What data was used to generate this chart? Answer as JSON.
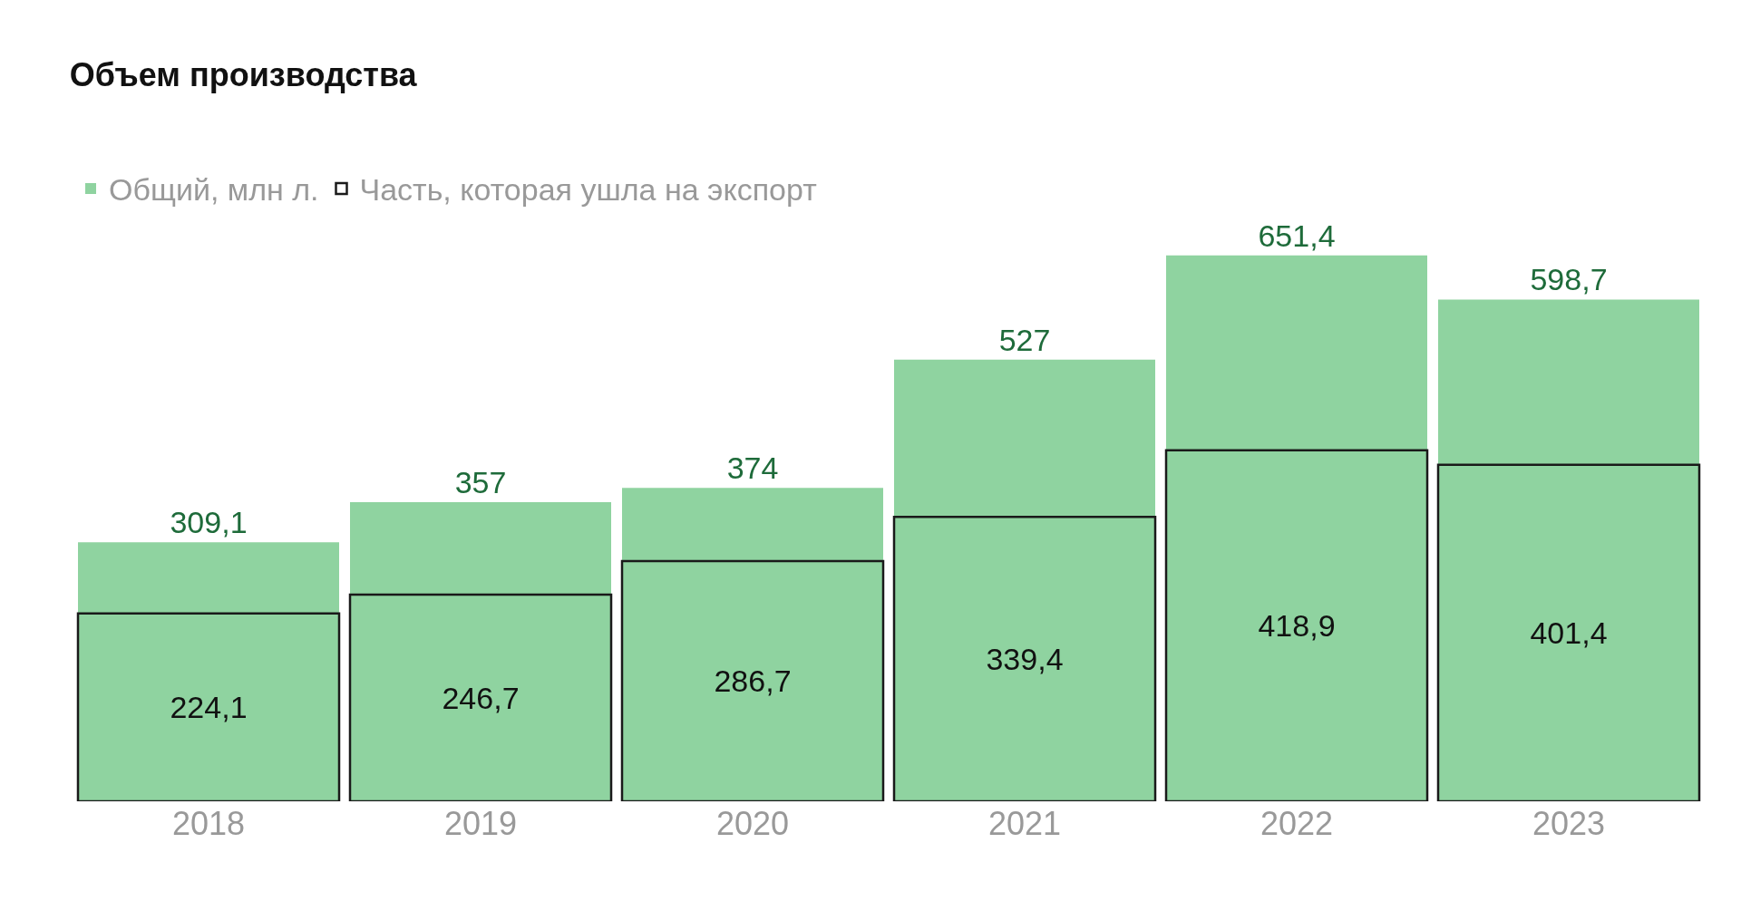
{
  "chart_data": {
    "type": "bar",
    "title": "Объем производства",
    "categories": [
      "2018",
      "2019",
      "2020",
      "2021",
      "2022",
      "2023"
    ],
    "series": [
      {
        "name": "Общий, млн л.",
        "color": "#8fd3a0",
        "values": [
          309.1,
          357,
          374,
          527,
          651.4,
          598.7
        ],
        "value_labels": [
          "309,1",
          "357",
          "374",
          "527",
          "651,4",
          "598,7"
        ]
      },
      {
        "name": "Часть, которая ушла на экспорт",
        "color": "#1a1a1a",
        "values": [
          224.1,
          246.7,
          286.7,
          339.4,
          418.9,
          401.4
        ],
        "value_labels": [
          "224,1",
          "246,7",
          "286,7",
          "339,4",
          "418,9",
          "401,4"
        ]
      }
    ],
    "legend": "top left",
    "grid": false,
    "stacked": false
  }
}
